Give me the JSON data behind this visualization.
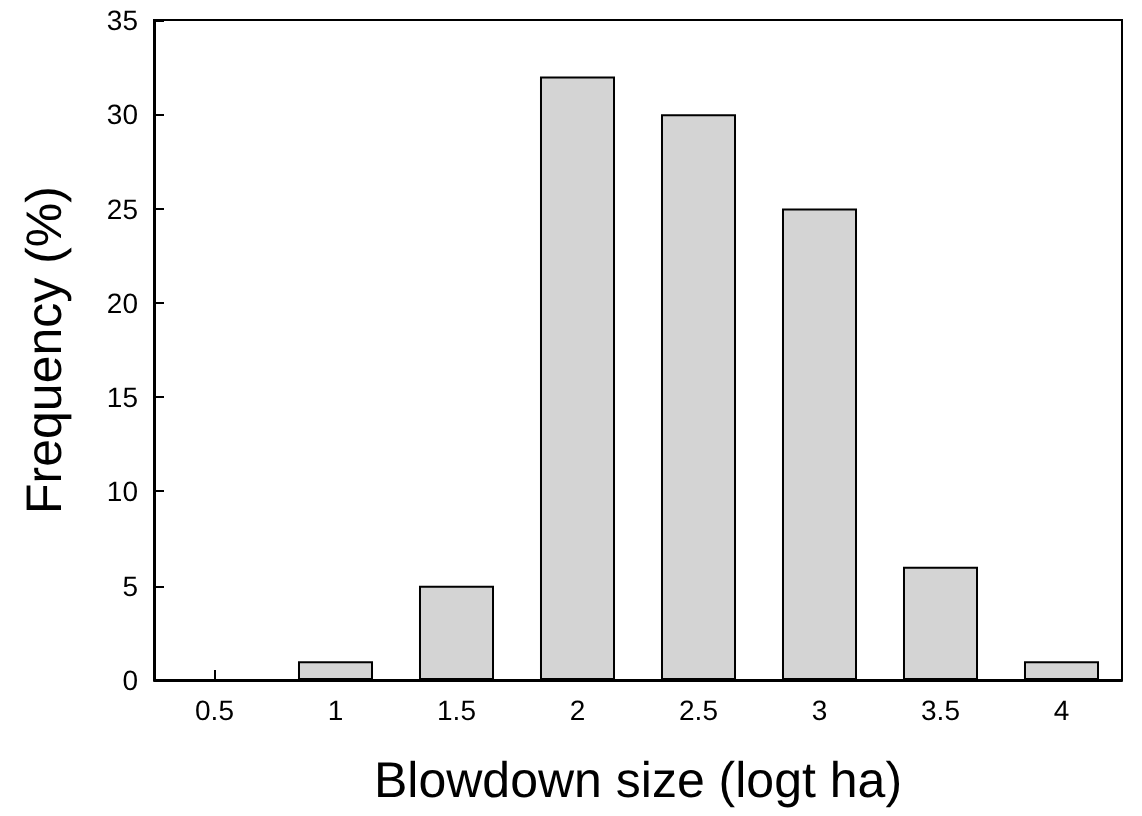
{
  "chart_data": {
    "type": "bar",
    "xlabel": "Blowdown size (logt ha)",
    "ylabel": "Frequency (%)",
    "categories": [
      "0.5",
      "1",
      "1.5",
      "2",
      "2.5",
      "3",
      "3.5",
      "4"
    ],
    "values": [
      0,
      1,
      5,
      32,
      30,
      25,
      6,
      1
    ],
    "color": "#d4d4d4",
    "ylim": [
      0,
      35
    ],
    "yticks": [
      0,
      5,
      10,
      15,
      20,
      25,
      30,
      35
    ],
    "grid": false
  }
}
